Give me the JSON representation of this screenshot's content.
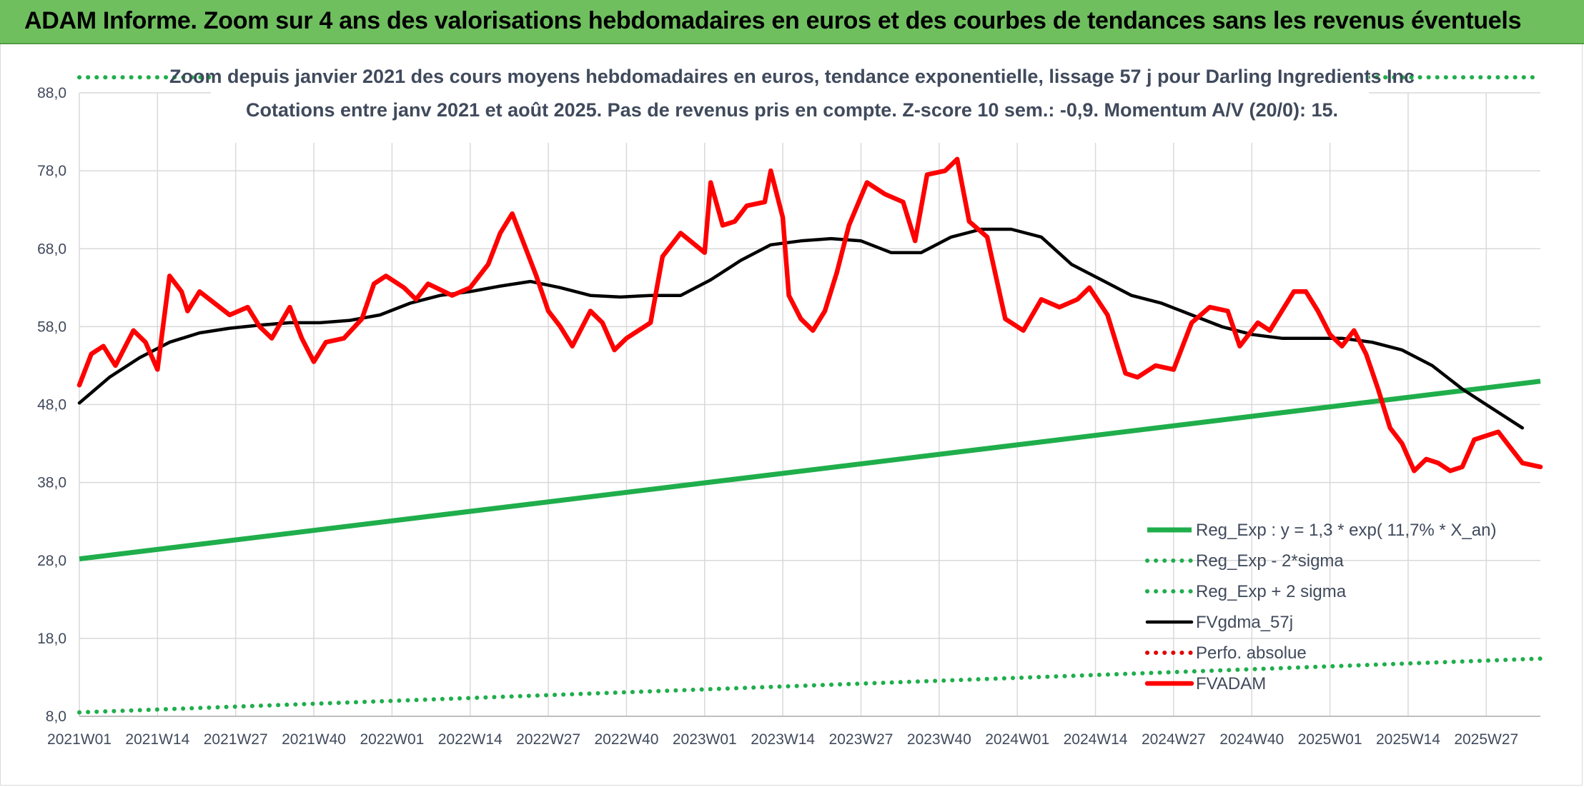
{
  "header": {
    "title": "ADAM Informe. Zoom sur 4 ans des valorisations hebdomadaires en euros et des courbes de tendances sans les revenus éventuels"
  },
  "chart_data": {
    "type": "line",
    "title": "Zoom depuis janvier 2021 des cours moyens hebdomadaires en euros, tendance exponentielle, lissage 57 j pour Darling Ingredients Inc",
    "subtitle": "Cotations entre janv 2021 et août 2025. Pas de revenus pris en compte. Z-score 10 sem.: -0,9. Momentum A/V (20/0): 15.",
    "xlabel": "",
    "ylabel": "",
    "ylim": [
      8,
      88
    ],
    "yticks": [
      "8,0",
      "18,0",
      "28,0",
      "38,0",
      "48,0",
      "58,0",
      "68,0",
      "78,0",
      "88,0"
    ],
    "x_ticks": [
      "2021W01",
      "2021W14",
      "2021W27",
      "2021W40",
      "2022W01",
      "2022W14",
      "2022W27",
      "2022W40",
      "2023W01",
      "2023W14",
      "2023W27",
      "2023W40",
      "2024W01",
      "2024W14",
      "2024W27",
      "2024W40",
      "2025W01",
      "2025W14",
      "2025W27"
    ],
    "grid": true,
    "legend_position": "bottom-right",
    "x_weeks": 243,
    "series": [
      {
        "name": "Reg_Exp : y = 1,3 * exp( 11,7% * X_an)",
        "style": "solid",
        "color": "#1fae4b",
        "keypoints": [
          [
            0,
            28.2
          ],
          [
            243,
            51.0
          ]
        ]
      },
      {
        "name": "Reg_Exp - 2*sigma",
        "style": "dotted",
        "color": "#1fae4b",
        "keypoints": [
          [
            0,
            8.5
          ],
          [
            243,
            15.4
          ]
        ]
      },
      {
        "name": "Reg_Exp + 2 sigma",
        "style": "dotted",
        "color": "#1fae4b",
        "keypoints": [
          [
            0,
            90.0
          ],
          [
            243,
            90.0
          ]
        ]
      },
      {
        "name": "FVgdma_57j",
        "style": "solid",
        "color": "#000000",
        "keypoints": [
          [
            0,
            48.2
          ],
          [
            5,
            51.5
          ],
          [
            10,
            54.0
          ],
          [
            15,
            56.0
          ],
          [
            20,
            57.2
          ],
          [
            25,
            57.8
          ],
          [
            30,
            58.2
          ],
          [
            35,
            58.5
          ],
          [
            40,
            58.5
          ],
          [
            45,
            58.8
          ],
          [
            50,
            59.5
          ],
          [
            55,
            61.0
          ],
          [
            60,
            62.0
          ],
          [
            65,
            62.5
          ],
          [
            70,
            63.2
          ],
          [
            75,
            63.8
          ],
          [
            80,
            63.0
          ],
          [
            85,
            62.0
          ],
          [
            90,
            61.8
          ],
          [
            95,
            62.0
          ],
          [
            100,
            62.0
          ],
          [
            105,
            64.0
          ],
          [
            110,
            66.5
          ],
          [
            115,
            68.5
          ],
          [
            120,
            69.0
          ],
          [
            125,
            69.3
          ],
          [
            130,
            69.0
          ],
          [
            135,
            67.5
          ],
          [
            140,
            67.5
          ],
          [
            145,
            69.5
          ],
          [
            150,
            70.5
          ],
          [
            155,
            70.5
          ],
          [
            160,
            69.5
          ],
          [
            165,
            66.0
          ],
          [
            170,
            64.0
          ],
          [
            175,
            62.0
          ],
          [
            180,
            61.0
          ],
          [
            185,
            59.5
          ],
          [
            190,
            58.0
          ],
          [
            195,
            57.0
          ],
          [
            200,
            56.5
          ],
          [
            205,
            56.5
          ],
          [
            210,
            56.5
          ],
          [
            215,
            56.0
          ],
          [
            220,
            55.0
          ],
          [
            225,
            53.0
          ],
          [
            230,
            50.0
          ],
          [
            235,
            47.5
          ],
          [
            240,
            45.0
          ]
        ]
      },
      {
        "name": "Perfo. absolue",
        "style": "dotted",
        "color": "#e00000",
        "keypoints": []
      },
      {
        "name": "FVADAM",
        "style": "solid",
        "color": "#ff0000",
        "keypoints": [
          [
            0,
            50.5
          ],
          [
            2,
            54.5
          ],
          [
            4,
            55.5
          ],
          [
            6,
            53.0
          ],
          [
            9,
            57.5
          ],
          [
            11,
            56.0
          ],
          [
            13,
            52.5
          ],
          [
            15,
            64.5
          ],
          [
            17,
            62.5
          ],
          [
            18,
            60.0
          ],
          [
            20,
            62.5
          ],
          [
            25,
            59.5
          ],
          [
            28,
            60.5
          ],
          [
            30,
            58.0
          ],
          [
            32,
            56.5
          ],
          [
            35,
            60.5
          ],
          [
            37,
            56.5
          ],
          [
            39,
            53.5
          ],
          [
            41,
            56.0
          ],
          [
            44,
            56.5
          ],
          [
            47,
            59.0
          ],
          [
            49,
            63.5
          ],
          [
            51,
            64.5
          ],
          [
            54,
            63.0
          ],
          [
            56,
            61.5
          ],
          [
            58,
            63.5
          ],
          [
            62,
            62.0
          ],
          [
            65,
            63.0
          ],
          [
            68,
            66.0
          ],
          [
            70,
            70.0
          ],
          [
            72,
            72.5
          ],
          [
            74,
            68.5
          ],
          [
            76,
            64.5
          ],
          [
            78,
            60.0
          ],
          [
            80,
            58.0
          ],
          [
            82,
            55.5
          ],
          [
            85,
            60.0
          ],
          [
            87,
            58.5
          ],
          [
            89,
            55.0
          ],
          [
            91,
            56.5
          ],
          [
            95,
            58.5
          ],
          [
            97,
            67.0
          ],
          [
            100,
            70.0
          ],
          [
            104,
            67.5
          ],
          [
            105,
            76.5
          ],
          [
            107,
            71.0
          ],
          [
            109,
            71.5
          ],
          [
            111,
            73.5
          ],
          [
            114,
            74.0
          ],
          [
            115,
            78.0
          ],
          [
            117,
            72.0
          ],
          [
            118,
            62.0
          ],
          [
            120,
            59.0
          ],
          [
            122,
            57.5
          ],
          [
            124,
            60.0
          ],
          [
            126,
            65.0
          ],
          [
            128,
            71.0
          ],
          [
            131,
            76.5
          ],
          [
            134,
            75.0
          ],
          [
            137,
            74.0
          ],
          [
            139,
            69.0
          ],
          [
            141,
            77.5
          ],
          [
            144,
            78.0
          ],
          [
            146,
            79.5
          ],
          [
            148,
            71.5
          ],
          [
            151,
            69.5
          ],
          [
            154,
            59.0
          ],
          [
            157,
            57.5
          ],
          [
            160,
            61.5
          ],
          [
            163,
            60.5
          ],
          [
            166,
            61.5
          ],
          [
            168,
            63.0
          ],
          [
            171,
            59.5
          ],
          [
            174,
            52.0
          ],
          [
            176,
            51.5
          ],
          [
            179,
            53.0
          ],
          [
            182,
            52.5
          ],
          [
            185,
            58.5
          ],
          [
            188,
            60.5
          ],
          [
            191,
            60.0
          ],
          [
            193,
            55.5
          ],
          [
            196,
            58.5
          ],
          [
            198,
            57.5
          ],
          [
            200,
            60.0
          ],
          [
            202,
            62.5
          ],
          [
            204,
            62.5
          ],
          [
            206,
            60.0
          ],
          [
            208,
            57.0
          ],
          [
            210,
            55.5
          ],
          [
            212,
            57.5
          ],
          [
            214,
            54.5
          ],
          [
            216,
            50.0
          ],
          [
            218,
            45.0
          ],
          [
            220,
            43.0
          ],
          [
            222,
            39.5
          ],
          [
            224,
            41.0
          ],
          [
            226,
            40.5
          ],
          [
            228,
            39.5
          ],
          [
            230,
            40.0
          ],
          [
            232,
            43.5
          ],
          [
            234,
            44.0
          ],
          [
            236,
            44.5
          ],
          [
            238,
            42.5
          ],
          [
            240,
            40.5
          ],
          [
            243,
            40.0
          ]
        ]
      }
    ]
  }
}
